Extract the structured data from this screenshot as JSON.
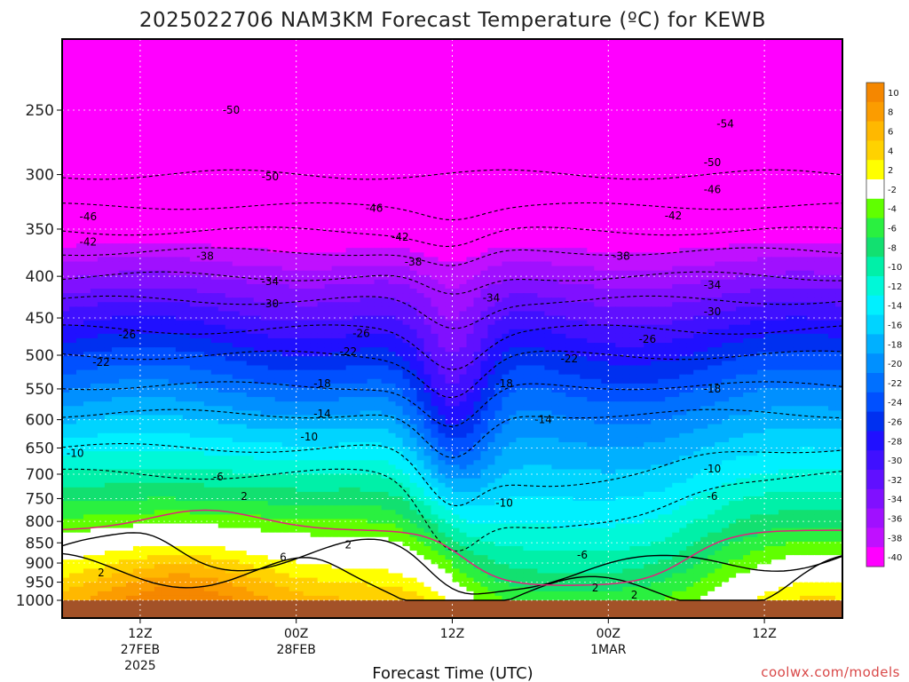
{
  "chart_data": {
    "type": "contour",
    "title": "2025022706 NAM3KM Forecast Temperature (ºC) for KEWB",
    "xlabel": "Forecast Time (UTC)",
    "ylabel": "",
    "y_axis": {
      "inverted": true,
      "levels": [
        250,
        300,
        350,
        400,
        450,
        500,
        550,
        600,
        650,
        700,
        750,
        800,
        850,
        900,
        950,
        1000
      ],
      "ylim": [
        1000,
        180
      ]
    },
    "x_axis": {
      "ticks": [
        {
          "label": "12Z",
          "sub1": "27FEB",
          "sub2": "2025",
          "hour": 6
        },
        {
          "label": "00Z",
          "sub1": "28FEB",
          "sub2": "",
          "hour": 18
        },
        {
          "label": "12Z",
          "sub1": "",
          "sub2": "",
          "hour": 30
        },
        {
          "label": "00Z",
          "sub1": "1MAR",
          "sub2": "",
          "hour": 42
        },
        {
          "label": "12Z",
          "sub1": "",
          "sub2": "",
          "hour": 54
        }
      ],
      "xlim_hours": [
        0,
        60
      ]
    },
    "colorbar": {
      "bins": [
        {
          "label": "10",
          "color": "#f58700"
        },
        {
          "label": "8",
          "color": "#fb9c00"
        },
        {
          "label": "6",
          "color": "#ffb800"
        },
        {
          "label": "4",
          "color": "#ffd200"
        },
        {
          "label": "2",
          "color": "#ffff00"
        },
        {
          "label": "-2",
          "color": "#ffffff"
        },
        {
          "label": "-4",
          "color": "#60ff00"
        },
        {
          "label": "-6",
          "color": "#2af040"
        },
        {
          "label": "-8",
          "color": "#12e070"
        },
        {
          "label": "-10",
          "color": "#00f0a8"
        },
        {
          "label": "-12",
          "color": "#00f8d8"
        },
        {
          "label": "-14",
          "color": "#00f0ff"
        },
        {
          "label": "-16",
          "color": "#00d4ff"
        },
        {
          "label": "-18",
          "color": "#00b0ff"
        },
        {
          "label": "-20",
          "color": "#0090ff"
        },
        {
          "label": "-22",
          "color": "#0070ff"
        },
        {
          "label": "-24",
          "color": "#0050ff"
        },
        {
          "label": "-26",
          "color": "#0030f0"
        },
        {
          "label": "-28",
          "color": "#2010ff"
        },
        {
          "label": "-30",
          "color": "#4010ff"
        },
        {
          "label": "-32",
          "color": "#6010ff"
        },
        {
          "label": "-34",
          "color": "#8010ff"
        },
        {
          "label": "-36",
          "color": "#a010ff"
        },
        {
          "label": "-38",
          "color": "#c010ff"
        },
        {
          "label": "-40",
          "color": "#ff00ff"
        }
      ],
      "ground_color": "#a35228"
    },
    "isotherms": [
      {
        "temp": -50,
        "label": "-50",
        "base_level": 300,
        "amp": -4,
        "dip": 0,
        "dashed": true
      },
      {
        "temp": -46,
        "label": "-46",
        "base_level": 328,
        "amp": 3,
        "dip": 10,
        "dashed": true
      },
      {
        "temp": -42,
        "label": "-42",
        "base_level": 352,
        "amp": 4,
        "dip": 14,
        "dashed": true
      },
      {
        "temp": -38,
        "label": "-38",
        "base_level": 373,
        "amp": 4,
        "dip": 18,
        "dashed": true
      },
      {
        "temp": -34,
        "label": "-34",
        "base_level": 400,
        "amp": 5,
        "dip": 25,
        "dashed": true
      },
      {
        "temp": -30,
        "label": "-30",
        "base_level": 428,
        "amp": 5,
        "dip": 35,
        "dashed": true
      },
      {
        "temp": -26,
        "label": "-26",
        "base_level": 465,
        "amp": 6,
        "dip": 50,
        "dashed": true
      },
      {
        "temp": -22,
        "label": "-22",
        "base_level": 500,
        "amp": 6,
        "dip": 60,
        "dashed": true
      },
      {
        "temp": -18,
        "label": "-18",
        "base_level": 545,
        "amp": 6,
        "dip": 70,
        "dashed": true
      },
      {
        "temp": -14,
        "label": "-14",
        "base_level": 590,
        "amp": 7,
        "dip": 85,
        "dashed": true
      },
      {
        "temp": -10,
        "label": "-10",
        "base_level": 650,
        "amp": 8,
        "dip": 110,
        "dashed": true
      },
      {
        "temp": -6,
        "label": "-6",
        "base_level": 700,
        "amp": 10,
        "dip": 150,
        "dashed": true
      },
      {
        "temp": 2,
        "label": "2",
        "base_level": 880,
        "amp": -40,
        "dip": 60,
        "dashed": false
      },
      {
        "temp": 6,
        "label": "6",
        "base_level": 920,
        "amp": -45,
        "dip": 30,
        "dashed": false
      }
    ],
    "contour_labels": [
      {
        "text": "-50",
        "hour": 13,
        "level": 250
      },
      {
        "text": "-50",
        "hour": 16,
        "level": 302
      },
      {
        "text": "-50",
        "hour": 50,
        "level": 290
      },
      {
        "text": "-54",
        "hour": 51,
        "level": 260
      },
      {
        "text": "-46",
        "hour": 2,
        "level": 338
      },
      {
        "text": "-46",
        "hour": 24,
        "level": 330
      },
      {
        "text": "-46",
        "hour": 50,
        "level": 313
      },
      {
        "text": "-42",
        "hour": 2,
        "level": 363
      },
      {
        "text": "-42",
        "hour": 26,
        "level": 358
      },
      {
        "text": "-42",
        "hour": 47,
        "level": 337
      },
      {
        "text": "-38",
        "hour": 11,
        "level": 378
      },
      {
        "text": "-38",
        "hour": 27,
        "level": 384
      },
      {
        "text": "-38",
        "hour": 43,
        "level": 378
      },
      {
        "text": "-34",
        "hour": 16,
        "level": 406
      },
      {
        "text": "-34",
        "hour": 33,
        "level": 425
      },
      {
        "text": "-34",
        "hour": 50,
        "level": 410
      },
      {
        "text": "-30",
        "hour": 16,
        "level": 432
      },
      {
        "text": "-30",
        "hour": 50,
        "level": 442
      },
      {
        "text": "-26",
        "hour": 5,
        "level": 472
      },
      {
        "text": "-26",
        "hour": 23,
        "level": 470
      },
      {
        "text": "-26",
        "hour": 45,
        "level": 478
      },
      {
        "text": "-22",
        "hour": 3,
        "level": 510
      },
      {
        "text": "-22",
        "hour": 22,
        "level": 495
      },
      {
        "text": "-22",
        "hour": 39,
        "level": 505
      },
      {
        "text": "-18",
        "hour": 20,
        "level": 542
      },
      {
        "text": "-18",
        "hour": 34,
        "level": 542
      },
      {
        "text": "-18",
        "hour": 50,
        "level": 550
      },
      {
        "text": "-14",
        "hour": 20,
        "level": 590
      },
      {
        "text": "-14",
        "hour": 37,
        "level": 600
      },
      {
        "text": "-10",
        "hour": 1,
        "level": 660
      },
      {
        "text": "-10",
        "hour": 19,
        "level": 630
      },
      {
        "text": "-10",
        "hour": 34,
        "level": 760
      },
      {
        "text": "-10",
        "hour": 50,
        "level": 690
      },
      {
        "text": "-6",
        "hour": 12,
        "level": 705
      },
      {
        "text": "-6",
        "hour": 40,
        "level": 880
      },
      {
        "text": "-6",
        "hour": 50,
        "level": 745
      },
      {
        "text": "2",
        "hour": 3,
        "level": 925
      },
      {
        "text": "2",
        "hour": 14,
        "level": 745
      },
      {
        "text": "2",
        "hour": 22,
        "level": 855
      },
      {
        "text": "2",
        "hour": 41,
        "level": 965
      },
      {
        "text": "2",
        "hour": 44,
        "level": 985
      },
      {
        "text": "6",
        "hour": 17,
        "level": 885
      }
    ],
    "credit": "coolwx.com/models"
  }
}
